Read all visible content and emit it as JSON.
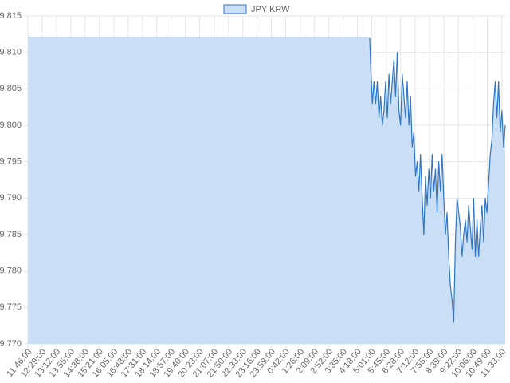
{
  "chart_data": {
    "type": "line",
    "x": [
      0,
      1029,
      1032,
      1037,
      1042,
      1047,
      1052,
      1057,
      1062,
      1067,
      1072,
      1077,
      1082,
      1087,
      1092,
      1097,
      1102,
      1107,
      1112,
      1117,
      1122,
      1127,
      1132,
      1137,
      1142,
      1147,
      1152,
      1157,
      1162,
      1167,
      1172,
      1177,
      1182,
      1187,
      1192,
      1197,
      1202,
      1207,
      1212,
      1217,
      1222,
      1227,
      1232,
      1237,
      1242,
      1247,
      1252,
      1257,
      1262,
      1267,
      1272,
      1277,
      1282,
      1287,
      1292,
      1297,
      1302,
      1307,
      1312,
      1317,
      1322,
      1327,
      1332,
      1337,
      1342,
      1347,
      1352,
      1357,
      1362,
      1367,
      1372,
      1377,
      1382,
      1387,
      1392,
      1397,
      1402,
      1407,
      1412,
      1417,
      1422,
      1427,
      1432,
      1437
    ],
    "series": [
      {
        "name": "JPY KRW",
        "color": "#2f76c9",
        "fill_color": "#cadff5",
        "values": [
          9.812,
          9.812,
          9.808,
          9.803,
          9.806,
          9.803,
          9.806,
          9.801,
          9.804,
          9.8,
          9.802,
          9.806,
          9.801,
          9.807,
          9.803,
          9.806,
          9.809,
          9.804,
          9.81,
          9.802,
          9.8,
          9.807,
          9.804,
          9.801,
          9.806,
          9.8,
          9.804,
          9.797,
          9.799,
          9.793,
          9.795,
          9.791,
          9.796,
          9.79,
          9.785,
          9.793,
          9.789,
          9.794,
          9.79,
          9.796,
          9.791,
          9.794,
          9.788,
          9.795,
          9.791,
          9.796,
          9.79,
          9.785,
          9.788,
          9.782,
          9.778,
          9.776,
          9.773,
          9.784,
          9.79,
          9.788,
          9.786,
          9.782,
          9.785,
          9.787,
          9.784,
          9.789,
          9.786,
          9.783,
          9.79,
          9.782,
          9.787,
          9.782,
          9.786,
          9.789,
          9.784,
          9.79,
          9.788,
          9.792,
          9.796,
          9.798,
          9.803,
          9.806,
          9.801,
          9.806,
          9.799,
          9.802,
          9.797,
          9.8
        ]
      }
    ],
    "xlim": [
      0,
      1437
    ],
    "xticks": [
      {
        "value": 0,
        "label": "11:46:00"
      },
      {
        "value": 43,
        "label": "12:29:00"
      },
      {
        "value": 86,
        "label": "13:12:00"
      },
      {
        "value": 129,
        "label": "13:55:00"
      },
      {
        "value": 172,
        "label": "14:38:00"
      },
      {
        "value": 215,
        "label": "15:21:00"
      },
      {
        "value": 259,
        "label": "16:05:00"
      },
      {
        "value": 302,
        "label": "16:48:00"
      },
      {
        "value": 345,
        "label": "17:31:00"
      },
      {
        "value": 388,
        "label": "18:14:00"
      },
      {
        "value": 431,
        "label": "18:57:00"
      },
      {
        "value": 474,
        "label": "19:40:00"
      },
      {
        "value": 517,
        "label": "20:23:00"
      },
      {
        "value": 561,
        "label": "21:07:00"
      },
      {
        "value": 604,
        "label": "21:50:00"
      },
      {
        "value": 647,
        "label": "22:33:00"
      },
      {
        "value": 690,
        "label": "23:16:00"
      },
      {
        "value": 733,
        "label": "23:59:00"
      },
      {
        "value": 776,
        "label": "0:42:00"
      },
      {
        "value": 820,
        "label": "1:26:00"
      },
      {
        "value": 863,
        "label": "2:09:00"
      },
      {
        "value": 906,
        "label": "2:52:00"
      },
      {
        "value": 949,
        "label": "3:35:00"
      },
      {
        "value": 992,
        "label": "4:18:00"
      },
      {
        "value": 1035,
        "label": "5:01:00"
      },
      {
        "value": 1079,
        "label": "5:45:00"
      },
      {
        "value": 1122,
        "label": "6:28:00"
      },
      {
        "value": 1166,
        "label": "7:12:00"
      },
      {
        "value": 1209,
        "label": "7:55:00"
      },
      {
        "value": 1253,
        "label": "8:39:00"
      },
      {
        "value": 1296,
        "label": "9:22:00"
      },
      {
        "value": 1340,
        "label": "10:06:00"
      },
      {
        "value": 1383,
        "label": "10:49:00"
      },
      {
        "value": 1427,
        "label": "11:33:00"
      }
    ],
    "ylim": [
      9.77,
      9.815
    ],
    "yticks": [
      9.815,
      {
        "value": 9.81,
        "label": "9.810"
      },
      9.805,
      {
        "value": 9.8,
        "label": "9.800"
      },
      9.795,
      {
        "value": 9.79,
        "label": "9.790"
      },
      9.785,
      {
        "value": 9.78,
        "label": "9.780"
      },
      9.775,
      {
        "value": 9.77,
        "label": "9.770"
      }
    ],
    "grid": true,
    "legend": "top"
  }
}
